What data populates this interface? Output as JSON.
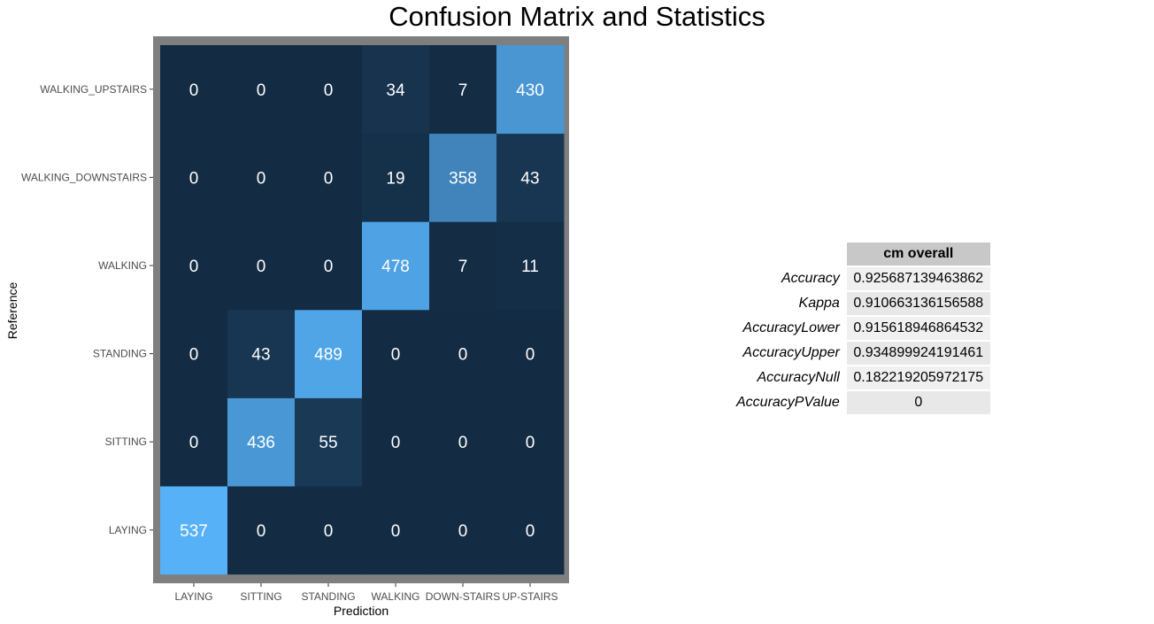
{
  "page": {
    "title": "Confusion Matrix and Statistics"
  },
  "chart_data": {
    "type": "heatmap",
    "xlabel": "Prediction",
    "ylabel": "Reference",
    "x_categories": [
      "LAYING",
      "SITTING",
      "STANDING",
      "WALKING",
      "DOWN-STAIRS",
      "UP-STAIRS"
    ],
    "y_categories": [
      "LAYING",
      "SITTING",
      "STANDING",
      "WALKING",
      "WALKING_DOWNSTAIRS",
      "WALKING_UPSTAIRS"
    ],
    "values": [
      [
        537,
        0,
        0,
        0,
        0,
        0
      ],
      [
        0,
        436,
        55,
        0,
        0,
        0
      ],
      [
        0,
        43,
        489,
        0,
        0,
        0
      ],
      [
        0,
        0,
        0,
        478,
        7,
        11
      ],
      [
        0,
        0,
        0,
        19,
        358,
        43
      ],
      [
        0,
        0,
        0,
        34,
        7,
        430
      ]
    ],
    "color_low": "#132b43",
    "color_high": "#56b1f7",
    "panel_border_color": "#7f7f7f",
    "grid": true
  },
  "stats_table": {
    "header": "cm overall",
    "rows": [
      {
        "label": "Accuracy",
        "value": "0.925687139463862"
      },
      {
        "label": "Kappa",
        "value": "0.910663136156588"
      },
      {
        "label": "AccuracyLower",
        "value": "0.915618946864532"
      },
      {
        "label": "AccuracyUpper",
        "value": "0.934899924191461"
      },
      {
        "label": "AccuracyNull",
        "value": "0.182219205972175"
      },
      {
        "label": "AccuracyPValue",
        "value": "0"
      }
    ]
  }
}
